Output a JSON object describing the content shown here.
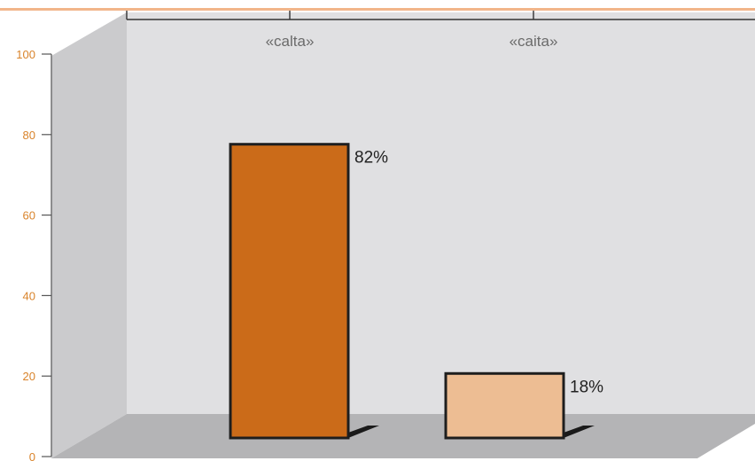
{
  "chart_data": {
    "type": "bar",
    "categories": [
      "«calta»",
      "«caita»"
    ],
    "values": [
      82,
      18
    ],
    "data_labels": [
      "82%",
      "18%"
    ],
    "ylim": [
      0,
      100
    ],
    "yticks": [
      0,
      20,
      40,
      60,
      80,
      100
    ],
    "ytick_labels": [
      "0",
      "20",
      "40",
      "60",
      "80",
      "100"
    ],
    "title": "",
    "xlabel": "",
    "ylabel": "",
    "grid": false,
    "legend": "none",
    "colors": {
      "bars": [
        "#cb6b19",
        "#edbd93"
      ],
      "bar_outline": "#1e1e1e",
      "bar_shadow": "#1a1a1a",
      "back_wall": "#e0e0e2",
      "side_wall": "#cbcbcd",
      "floor": "#b4b4b6",
      "axis_ticks": "#d9832a",
      "top_rule": "#f2b58a"
    }
  }
}
